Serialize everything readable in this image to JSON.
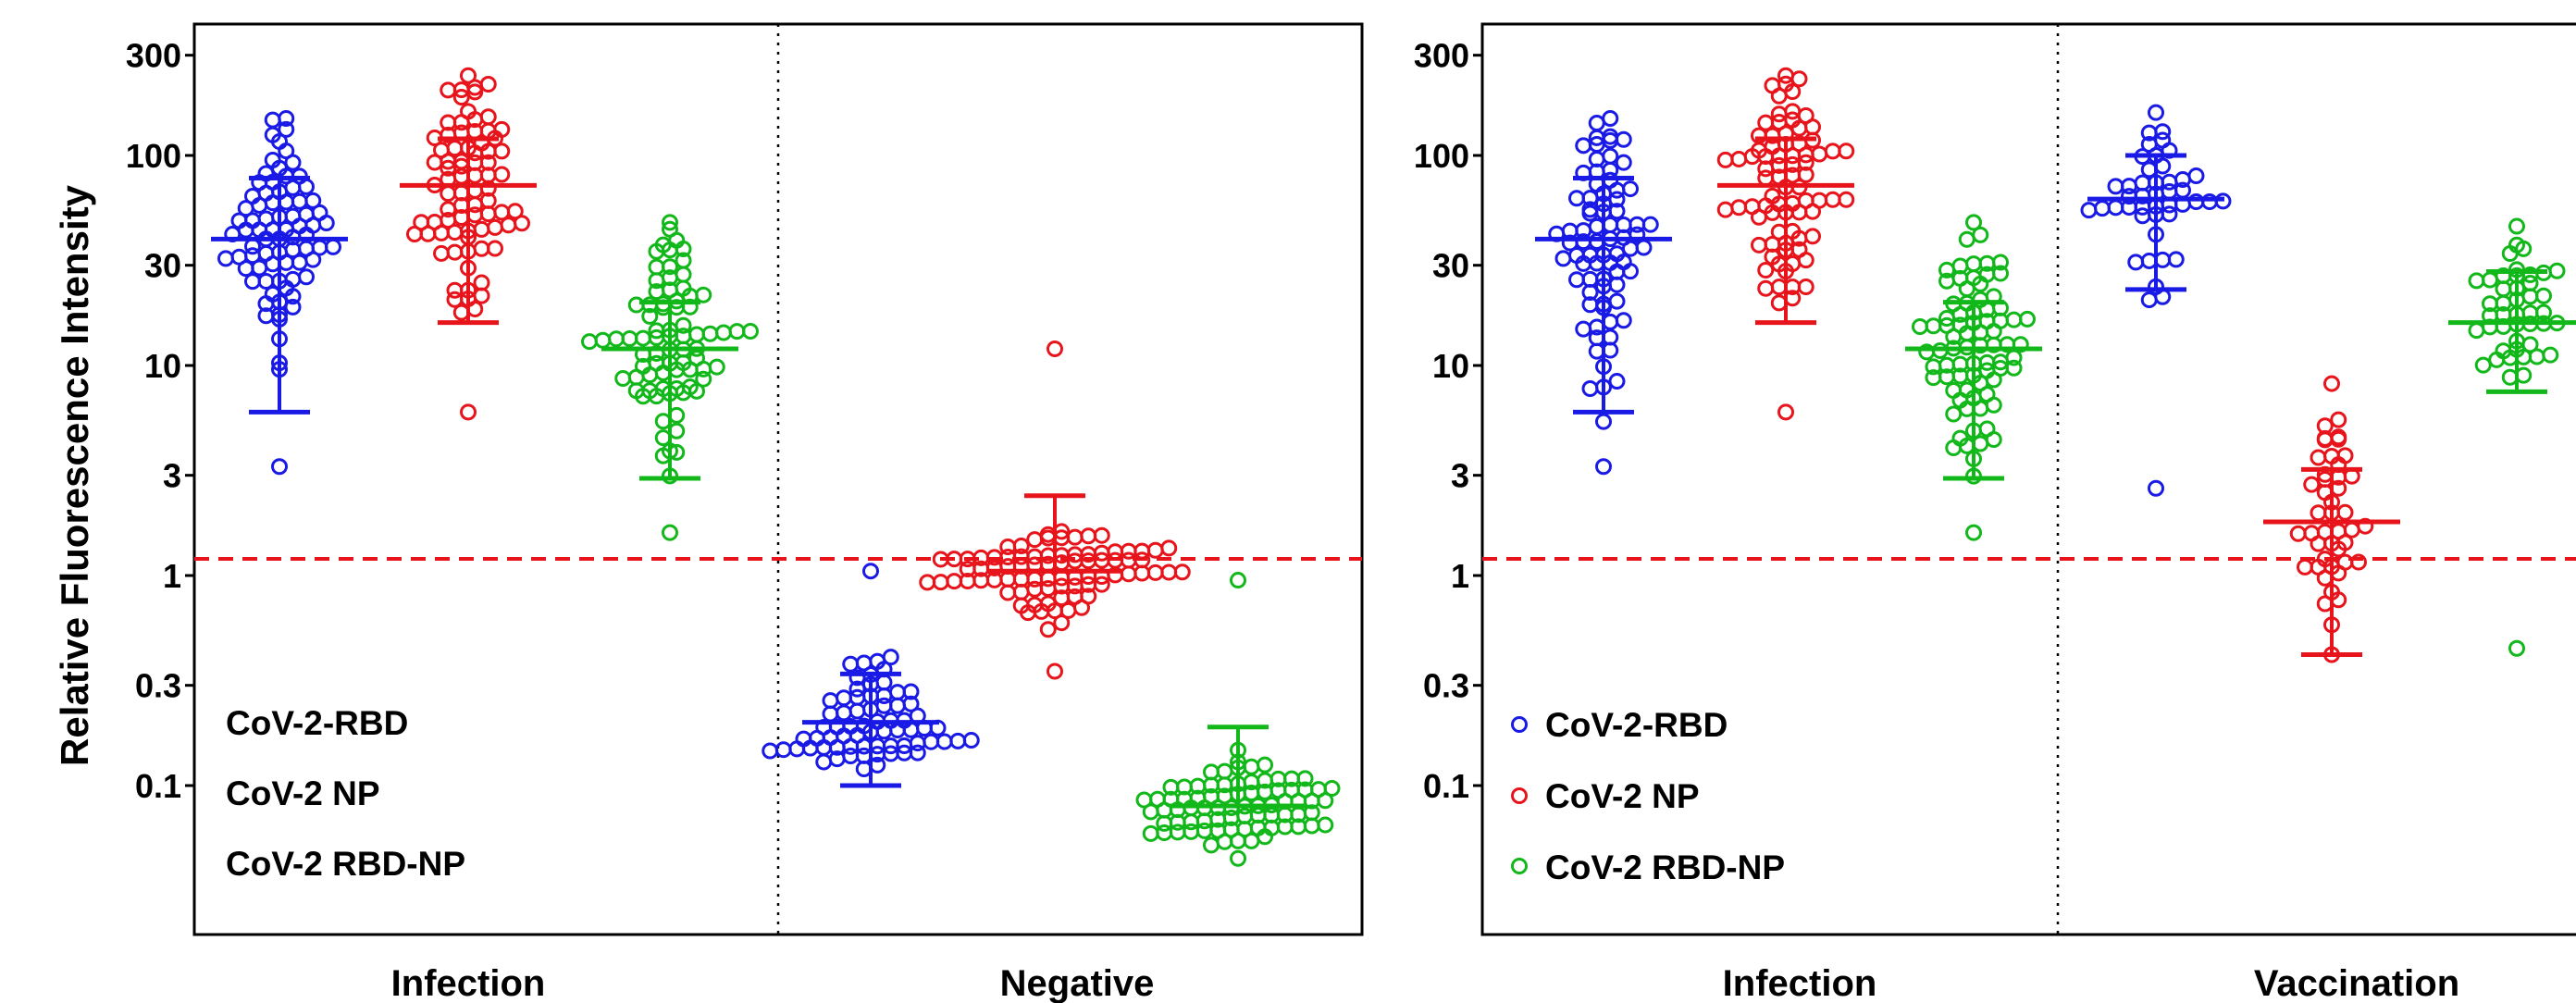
{
  "chart_data": [
    {
      "type": "scatter",
      "subtype": "dot-plot with mean and SD bars",
      "title": "",
      "ylabel": "Relative Fluorescence Intensity",
      "yscale": "log",
      "ylim": [
        0.035,
        380
      ],
      "yticks": [
        0.1,
        0.3,
        1,
        3,
        10,
        30,
        100,
        300
      ],
      "ytick_labels": [
        "0.1",
        "0.3",
        "1",
        "3",
        "10",
        "30",
        "100",
        "300"
      ],
      "cutoff": {
        "value": 1.2,
        "color": "#e8141b",
        "style": "dashed"
      },
      "groups": [
        "Infection",
        "Negative"
      ],
      "legend": {
        "placement": "bottom-left",
        "show_markers": false,
        "entries": [
          "CoV-2-RBD",
          "CoV-2 NP",
          "CoV-2 RBD-NP"
        ]
      },
      "series": [
        {
          "name": "CoV-2-RBD",
          "group": "Infection",
          "color": "#1a1ae6",
          "n": 78,
          "min": 3.3,
          "max": 150,
          "mean": 40,
          "sd_low": 6,
          "sd_high": 78
        },
        {
          "name": "CoV-2 NP",
          "group": "Infection",
          "color": "#e8141b",
          "n": 80,
          "min": 6,
          "max": 240,
          "mean": 72,
          "sd_low": 16,
          "sd_high": 120
        },
        {
          "name": "CoV-2 RBD-NP",
          "group": "Infection",
          "color": "#12b81a",
          "n": 80,
          "min": 1.6,
          "max": 48,
          "mean": 12,
          "sd_low": 2.9,
          "sd_high": 20
        },
        {
          "name": "CoV-2-RBD",
          "group": "Negative",
          "color": "#1a1ae6",
          "n": 70,
          "min": 0.12,
          "max": 1.05,
          "mean": 0.2,
          "sd_low": 0.1,
          "sd_high": 0.34
        },
        {
          "name": "CoV-2 NP",
          "group": "Negative",
          "color": "#e8141b",
          "n": 85,
          "min": 0.35,
          "max": 12,
          "mean": 1.05,
          "sd_low": 1.05,
          "sd_high": 2.4
        },
        {
          "name": "CoV-2 RBD-NP",
          "group": "Negative",
          "color": "#12b81a",
          "n": 80,
          "min": 0.045,
          "max": 0.95,
          "mean": 0.08,
          "sd_low": 0.08,
          "sd_high": 0.19
        }
      ]
    },
    {
      "type": "scatter",
      "subtype": "dot-plot with mean and SD bars",
      "title": "",
      "ylabel": "",
      "yscale": "log",
      "ylim": [
        0.035,
        380
      ],
      "yticks": [
        0.1,
        0.3,
        1,
        3,
        10,
        30,
        100,
        300
      ],
      "ytick_labels": [
        "0.1",
        "0.3",
        "1",
        "3",
        "10",
        "30",
        "100",
        "300"
      ],
      "cutoff": {
        "value": 1.2,
        "color": "#e8141b",
        "style": "dashed"
      },
      "groups": [
        "Infection",
        "Vaccination"
      ],
      "legend": {
        "placement": "bottom-left",
        "show_markers": true,
        "entries": [
          "CoV-2-RBD",
          "CoV-2 NP",
          "CoV-2 RBD-NP"
        ]
      },
      "series": [
        {
          "name": "CoV-2-RBD",
          "group": "Infection",
          "color": "#1a1ae6",
          "n": 78,
          "min": 3.3,
          "max": 150,
          "mean": 40,
          "sd_low": 6,
          "sd_high": 78
        },
        {
          "name": "CoV-2 NP",
          "group": "Infection",
          "color": "#e8141b",
          "n": 80,
          "min": 6,
          "max": 240,
          "mean": 72,
          "sd_low": 16,
          "sd_high": 120
        },
        {
          "name": "CoV-2 RBD-NP",
          "group": "Infection",
          "color": "#12b81a",
          "n": 80,
          "min": 1.6,
          "max": 48,
          "mean": 12,
          "sd_low": 2.9,
          "sd_high": 20
        },
        {
          "name": "CoV-2-RBD",
          "group": "Vaccination",
          "color": "#1a1ae6",
          "n": 45,
          "min": 2.6,
          "max": 160,
          "mean": 62,
          "sd_low": 23,
          "sd_high": 100
        },
        {
          "name": "CoV-2 NP",
          "group": "Vaccination",
          "color": "#e8141b",
          "n": 45,
          "min": 0.42,
          "max": 8.2,
          "mean": 1.8,
          "sd_low": 0.42,
          "sd_high": 3.2
        },
        {
          "name": "CoV-2 RBD-NP",
          "group": "Vaccination",
          "color": "#12b81a",
          "n": 45,
          "min": 0.45,
          "max": 46,
          "mean": 16,
          "sd_low": 7.5,
          "sd_high": 28
        }
      ]
    }
  ]
}
